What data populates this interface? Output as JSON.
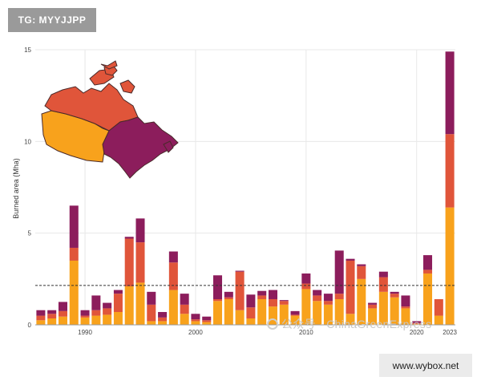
{
  "watermarks": {
    "top_left": "TG: MYYJJPP",
    "bottom_right": "www.wybox.net",
    "overlay_cn": "公众号 · ChinaGreenExpress"
  },
  "colors": {
    "west": "#F8A21C",
    "central": "#E0553A",
    "east": "#8C1D5C",
    "grid": "#E8E8E8",
    "reference_line": "#333333",
    "map_outline": "#4A2A2A"
  },
  "chart_data": {
    "type": "bar",
    "stacked": true,
    "title": "",
    "xlabel": "",
    "ylabel": "Burned area (Mha)",
    "ylim": [
      0,
      15
    ],
    "yticks": [
      0,
      5,
      10,
      15
    ],
    "xticks": [
      1990,
      2000,
      2010,
      2020,
      2023
    ],
    "grid": true,
    "legend": "none",
    "reference_line": {
      "value": 2.15,
      "style": "dashed"
    },
    "inset": "map of Canada split into three regions coloured to match the series",
    "categories": [
      1986,
      1987,
      1988,
      1989,
      1990,
      1991,
      1992,
      1993,
      1994,
      1995,
      1996,
      1997,
      1998,
      1999,
      2000,
      2001,
      2002,
      2003,
      2004,
      2005,
      2006,
      2007,
      2008,
      2009,
      2010,
      2011,
      2012,
      2013,
      2014,
      2015,
      2016,
      2017,
      2018,
      2019,
      2020,
      2021,
      2022,
      2023
    ],
    "series": [
      {
        "region": "west",
        "values": [
          0.25,
          0.35,
          0.45,
          3.5,
          0.4,
          0.5,
          0.55,
          0.7,
          2.1,
          2.3,
          0.2,
          0.2,
          1.9,
          0.6,
          0.2,
          0.15,
          1.3,
          1.4,
          0.8,
          0.35,
          1.4,
          1.0,
          1.1,
          0.5,
          1.95,
          1.3,
          1.1,
          1.4,
          0.6,
          2.5,
          0.9,
          1.8,
          1.5,
          0.9,
          0.05,
          2.8,
          0.5,
          6.4
        ]
      },
      {
        "region": "central",
        "values": [
          0.25,
          0.25,
          0.3,
          0.7,
          0.1,
          0.3,
          0.35,
          1.0,
          2.6,
          2.2,
          0.9,
          0.2,
          1.5,
          0.5,
          0.1,
          0.1,
          0.1,
          0.1,
          2.1,
          0.6,
          0.2,
          0.4,
          0.2,
          0.05,
          0.3,
          0.3,
          0.2,
          0.3,
          2.9,
          0.7,
          0.2,
          0.8,
          0.2,
          0.1,
          0.05,
          0.2,
          0.9,
          4.0
        ]
      },
      {
        "region": "east",
        "values": [
          0.3,
          0.2,
          0.5,
          2.3,
          0.3,
          0.8,
          0.3,
          0.2,
          0.1,
          1.3,
          0.7,
          0.3,
          0.6,
          0.6,
          0.3,
          0.2,
          1.3,
          0.3,
          0.05,
          0.7,
          0.25,
          0.5,
          0.05,
          0.2,
          0.55,
          0.3,
          0.4,
          2.35,
          0.1,
          0.1,
          0.1,
          0.3,
          0.1,
          0.6,
          0.1,
          0.8,
          0.0,
          4.5
        ]
      }
    ]
  }
}
